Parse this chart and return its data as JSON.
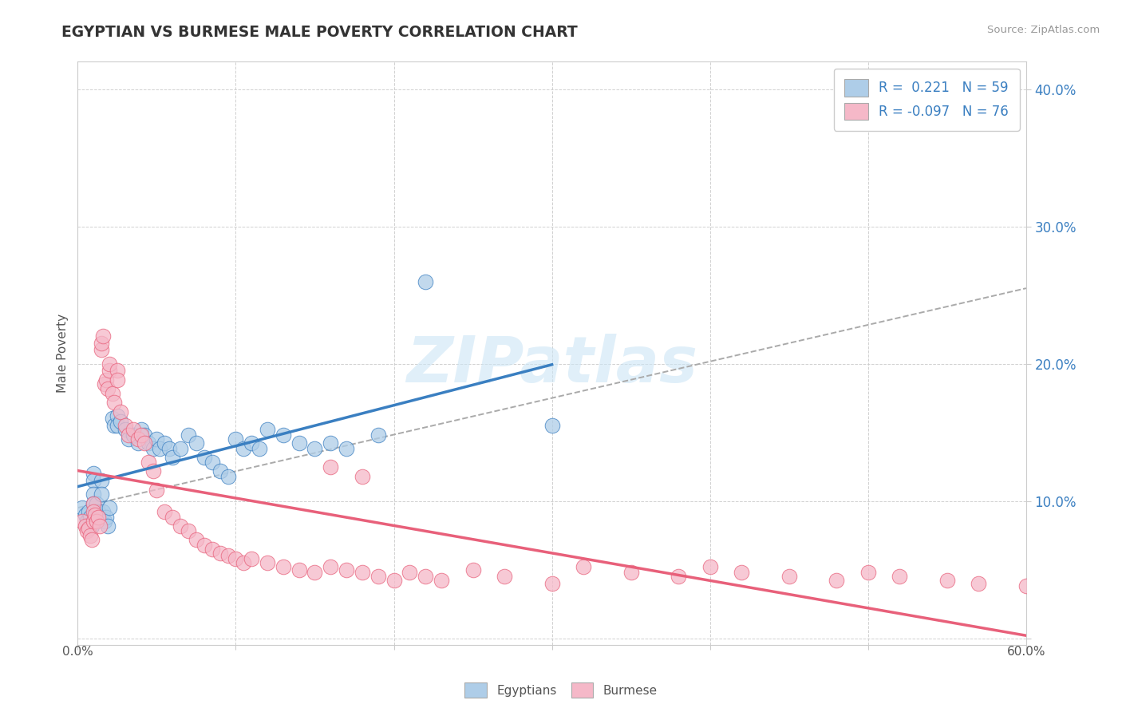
{
  "title": "EGYPTIAN VS BURMESE MALE POVERTY CORRELATION CHART",
  "source": "Source: ZipAtlas.com",
  "ylabel": "Male Poverty",
  "xlim": [
    0.0,
    0.6
  ],
  "ylim": [
    -0.005,
    0.42
  ],
  "yticks": [
    0.0,
    0.1,
    0.2,
    0.3,
    0.4
  ],
  "ytick_labels": [
    "",
    "10.0%",
    "20.0%",
    "30.0%",
    "40.0%"
  ],
  "r_egyptian": 0.221,
  "n_egyptian": 59,
  "r_burmese": -0.097,
  "n_burmese": 76,
  "color_egyptian": "#aecde8",
  "color_burmese": "#f5b8c8",
  "line_color_egyptian": "#3a7fc1",
  "line_color_burmese": "#e8607a",
  "legend_text_color": "#3a7fc1",
  "watermark": "ZIPatlas",
  "egyptian_x": [
    0.003,
    0.005,
    0.006,
    0.007,
    0.008,
    0.009,
    0.01,
    0.01,
    0.01,
    0.01,
    0.01,
    0.012,
    0.013,
    0.014,
    0.015,
    0.015,
    0.016,
    0.017,
    0.018,
    0.019,
    0.02,
    0.022,
    0.023,
    0.025,
    0.025,
    0.027,
    0.03,
    0.032,
    0.035,
    0.038,
    0.04,
    0.042,
    0.045,
    0.048,
    0.05,
    0.052,
    0.055,
    0.058,
    0.06,
    0.065,
    0.07,
    0.075,
    0.08,
    0.085,
    0.09,
    0.095,
    0.1,
    0.105,
    0.11,
    0.115,
    0.12,
    0.13,
    0.14,
    0.15,
    0.16,
    0.17,
    0.19,
    0.22,
    0.3
  ],
  "egyptian_y": [
    0.095,
    0.09,
    0.085,
    0.092,
    0.088,
    0.082,
    0.12,
    0.115,
    0.105,
    0.098,
    0.085,
    0.098,
    0.092,
    0.088,
    0.115,
    0.105,
    0.092,
    0.085,
    0.088,
    0.082,
    0.095,
    0.16,
    0.155,
    0.162,
    0.155,
    0.158,
    0.152,
    0.145,
    0.148,
    0.142,
    0.152,
    0.148,
    0.142,
    0.138,
    0.145,
    0.138,
    0.142,
    0.138,
    0.132,
    0.138,
    0.148,
    0.142,
    0.132,
    0.128,
    0.122,
    0.118,
    0.145,
    0.138,
    0.142,
    0.138,
    0.152,
    0.148,
    0.142,
    0.138,
    0.142,
    0.138,
    0.148,
    0.26,
    0.155
  ],
  "burmese_x": [
    0.003,
    0.005,
    0.006,
    0.007,
    0.008,
    0.009,
    0.01,
    0.01,
    0.01,
    0.011,
    0.012,
    0.013,
    0.014,
    0.015,
    0.015,
    0.016,
    0.017,
    0.018,
    0.019,
    0.02,
    0.02,
    0.022,
    0.023,
    0.025,
    0.025,
    0.027,
    0.03,
    0.032,
    0.035,
    0.038,
    0.04,
    0.042,
    0.045,
    0.048,
    0.05,
    0.055,
    0.06,
    0.065,
    0.07,
    0.075,
    0.08,
    0.085,
    0.09,
    0.095,
    0.1,
    0.105,
    0.11,
    0.12,
    0.13,
    0.14,
    0.15,
    0.16,
    0.17,
    0.18,
    0.19,
    0.2,
    0.21,
    0.22,
    0.23,
    0.25,
    0.27,
    0.3,
    0.32,
    0.35,
    0.38,
    0.4,
    0.42,
    0.45,
    0.48,
    0.5,
    0.52,
    0.55,
    0.57,
    0.6,
    0.16,
    0.18
  ],
  "burmese_y": [
    0.085,
    0.082,
    0.078,
    0.08,
    0.075,
    0.072,
    0.098,
    0.092,
    0.085,
    0.09,
    0.085,
    0.088,
    0.082,
    0.21,
    0.215,
    0.22,
    0.185,
    0.188,
    0.182,
    0.195,
    0.2,
    0.178,
    0.172,
    0.195,
    0.188,
    0.165,
    0.155,
    0.148,
    0.152,
    0.145,
    0.148,
    0.142,
    0.128,
    0.122,
    0.108,
    0.092,
    0.088,
    0.082,
    0.078,
    0.072,
    0.068,
    0.065,
    0.062,
    0.06,
    0.058,
    0.055,
    0.058,
    0.055,
    0.052,
    0.05,
    0.048,
    0.052,
    0.05,
    0.048,
    0.045,
    0.042,
    0.048,
    0.045,
    0.042,
    0.05,
    0.045,
    0.04,
    0.052,
    0.048,
    0.045,
    0.052,
    0.048,
    0.045,
    0.042,
    0.048,
    0.045,
    0.042,
    0.04,
    0.038,
    0.125,
    0.118
  ]
}
